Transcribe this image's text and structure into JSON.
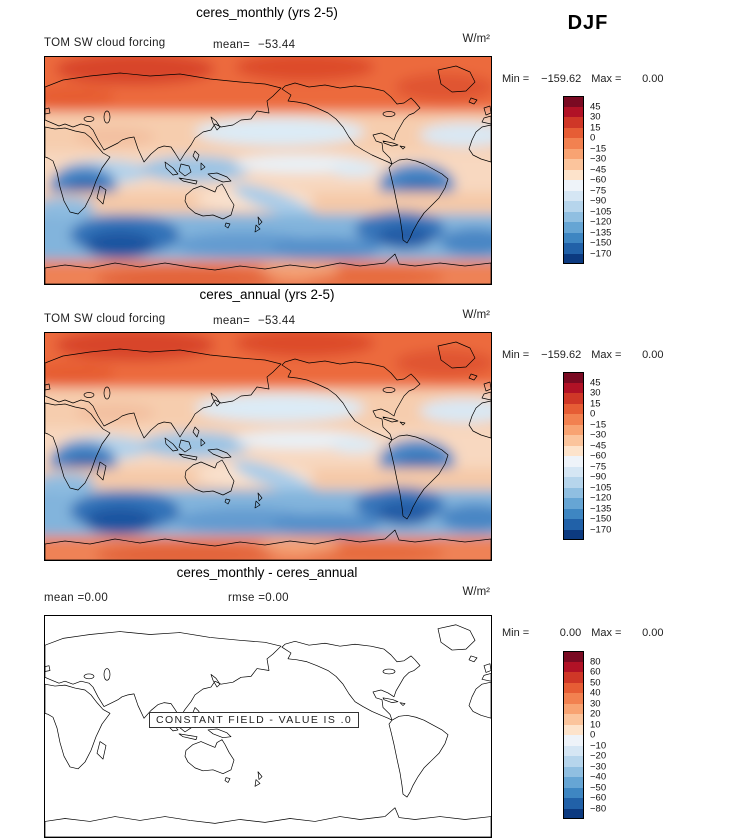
{
  "season_label": "DJF",
  "chart_data": [
    {
      "type": "heatmap",
      "title": "ceres_monthly (yrs 2-5)",
      "variable": "TOM SW cloud forcing",
      "mean_label": "mean=",
      "mean": "−53.44",
      "units": "W/m²",
      "min_label": "Min =",
      "min_value": "−159.62",
      "max_label": "Max =",
      "max_value": "0.00",
      "colorbar": {
        "levels": [
          45,
          30,
          15,
          0,
          -15,
          -30,
          -45,
          -60,
          -75,
          -90,
          -105,
          -120,
          -135,
          -150,
          -170
        ],
        "colors": [
          "#7a0a22",
          "#b11226",
          "#cf3727",
          "#e65d35",
          "#f28150",
          "#f8a372",
          "#fbc49c",
          "#fde3cb",
          "#eef3f9",
          "#d5e6f4",
          "#b6d5ec",
          "#90bfe1",
          "#66a5d4",
          "#3e86c2",
          "#2161a8",
          "#0c3a80"
        ]
      }
    },
    {
      "type": "heatmap",
      "title": "ceres_annual (yrs 2-5)",
      "variable": "TOM SW cloud forcing",
      "mean_label": "mean=",
      "mean": "−53.44",
      "units": "W/m²",
      "min_label": "Min =",
      "min_value": "−159.62",
      "max_label": "Max =",
      "max_value": "0.00",
      "colorbar": {
        "levels": [
          45,
          30,
          15,
          0,
          -15,
          -30,
          -45,
          -60,
          -75,
          -90,
          -105,
          -120,
          -135,
          -150,
          -170
        ],
        "colors": [
          "#7a0a22",
          "#b11226",
          "#cf3727",
          "#e65d35",
          "#f28150",
          "#f8a372",
          "#fbc49c",
          "#fde3cb",
          "#eef3f9",
          "#d5e6f4",
          "#b6d5ec",
          "#90bfe1",
          "#66a5d4",
          "#3e86c2",
          "#2161a8",
          "#0c3a80"
        ]
      }
    },
    {
      "type": "heatmap",
      "title": "ceres_monthly - ceres_annual",
      "mean_label": "mean =",
      "mean": "0.00",
      "rmse_label": "rmse =",
      "rmse": "0.00",
      "units": "W/m²",
      "min_label": "Min =",
      "min_value": "0.00",
      "max_label": "Max =",
      "max_value": "0.00",
      "annotation": "CONSTANT FIELD - VALUE IS .0",
      "colorbar": {
        "levels": [
          80,
          60,
          50,
          40,
          30,
          20,
          10,
          0,
          -10,
          -20,
          -30,
          -40,
          -50,
          -60,
          -80
        ],
        "colors": [
          "#7a0a22",
          "#b11226",
          "#cf3727",
          "#e65d35",
          "#f28150",
          "#f8a372",
          "#fbc49c",
          "#fde3cb",
          "#eef3f9",
          "#d5e6f4",
          "#b6d5ec",
          "#90bfe1",
          "#66a5d4",
          "#3e86c2",
          "#2161a8",
          "#0c3a80"
        ]
      }
    }
  ]
}
